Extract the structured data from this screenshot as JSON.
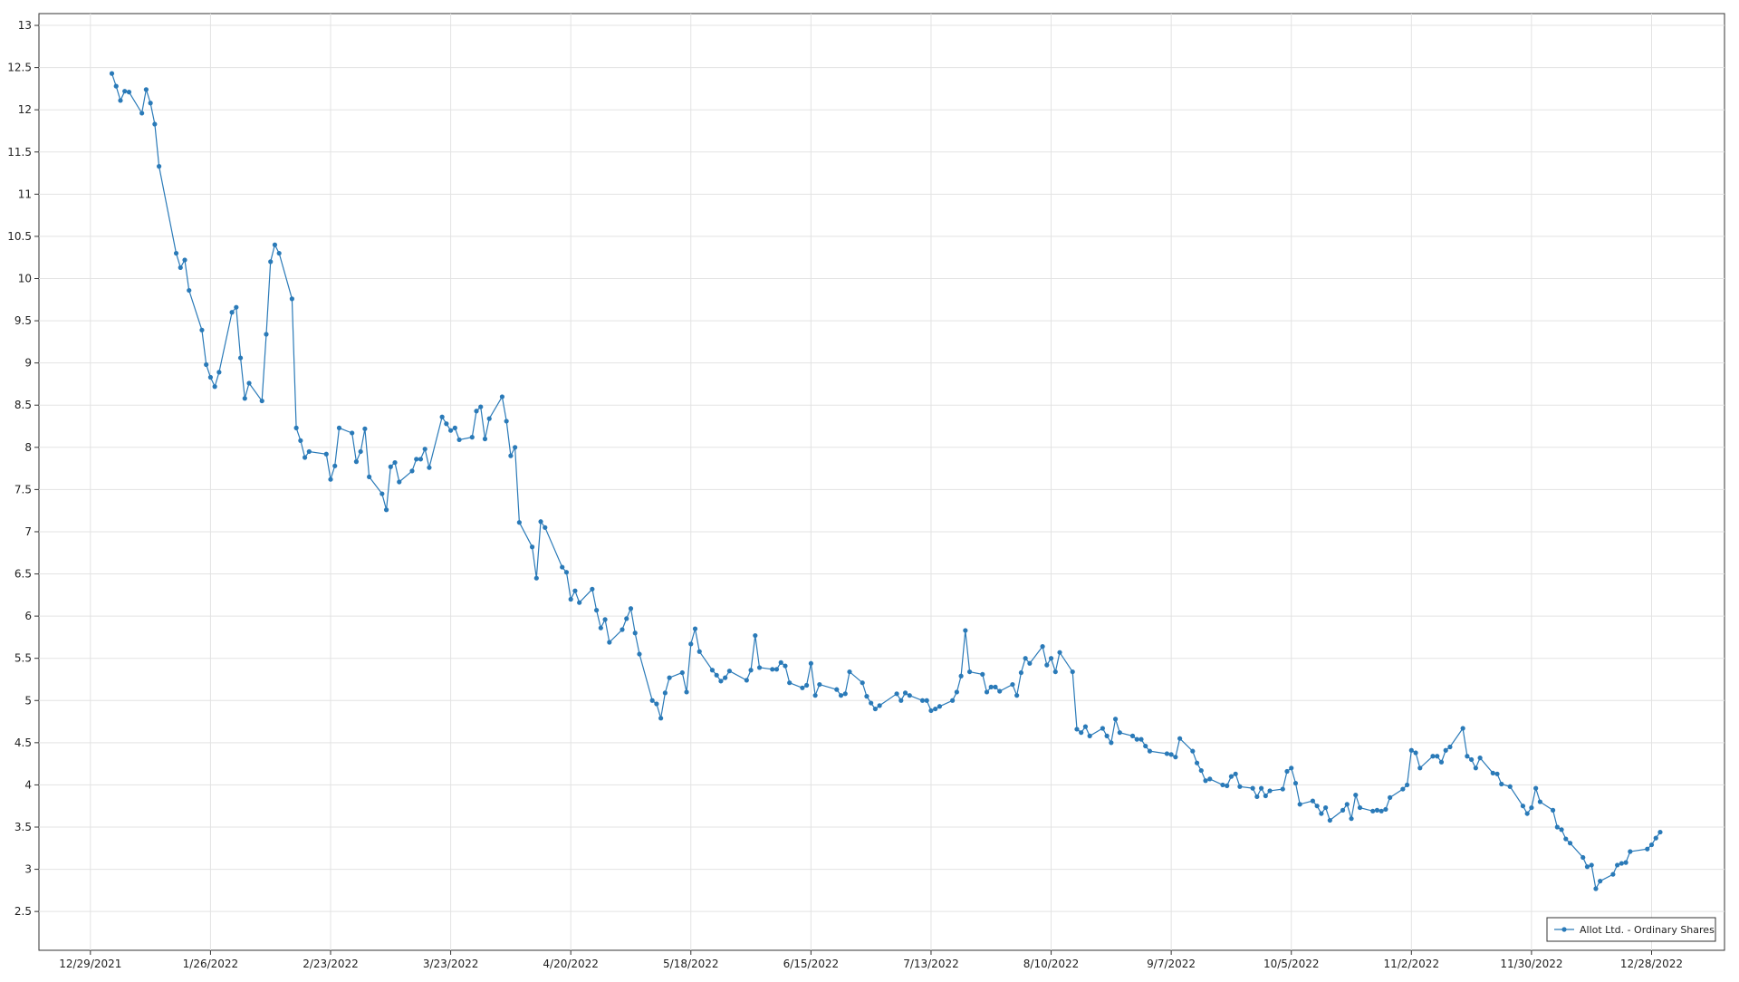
{
  "chart_data": {
    "type": "line",
    "color": "#2a7ab8",
    "grid": true,
    "legend": "lower right",
    "xlim": [
      "12/17/2021",
      "1/14/2023"
    ],
    "xticks": [
      "12/29/2021",
      "1/26/2022",
      "2/23/2022",
      "3/23/2022",
      "4/20/2022",
      "5/18/2022",
      "6/15/2022",
      "7/13/2022",
      "8/10/2022",
      "9/7/2022",
      "10/5/2022",
      "11/2/2022",
      "11/30/2022",
      "12/28/2022"
    ],
    "ylim": [
      2.04,
      13.14
    ],
    "yticks": [
      2.5,
      3,
      3.5,
      4,
      4.5,
      5,
      5.5,
      6,
      6.5,
      7,
      7.5,
      8,
      8.5,
      9,
      9.5,
      10,
      10.5,
      11,
      11.5,
      12,
      12.5,
      13
    ],
    "x": [
      "1/3/2022",
      "1/4/2022",
      "1/5/2022",
      "1/6/2022",
      "1/7/2022",
      "1/10/2022",
      "1/11/2022",
      "1/12/2022",
      "1/13/2022",
      "1/14/2022",
      "1/18/2022",
      "1/19/2022",
      "1/20/2022",
      "1/21/2022",
      "1/24/2022",
      "1/25/2022",
      "1/26/2022",
      "1/27/2022",
      "1/28/2022",
      "1/31/2022",
      "2/1/2022",
      "2/2/2022",
      "2/3/2022",
      "2/4/2022",
      "2/7/2022",
      "2/8/2022",
      "2/9/2022",
      "2/10/2022",
      "2/11/2022",
      "2/14/2022",
      "2/15/2022",
      "2/16/2022",
      "2/17/2022",
      "2/18/2022",
      "2/22/2022",
      "2/23/2022",
      "2/24/2022",
      "2/25/2022",
      "2/28/2022",
      "3/1/2022",
      "3/2/2022",
      "3/3/2022",
      "3/4/2022",
      "3/7/2022",
      "3/8/2022",
      "3/9/2022",
      "3/10/2022",
      "3/11/2022",
      "3/14/2022",
      "3/15/2022",
      "3/16/2022",
      "3/17/2022",
      "3/18/2022",
      "3/21/2022",
      "3/22/2022",
      "3/23/2022",
      "3/24/2022",
      "3/25/2022",
      "3/28/2022",
      "3/29/2022",
      "3/30/2022",
      "3/31/2022",
      "4/1/2022",
      "4/4/2022",
      "4/5/2022",
      "4/6/2022",
      "4/7/2022",
      "4/8/2022",
      "4/11/2022",
      "4/12/2022",
      "4/13/2022",
      "4/14/2022",
      "4/18/2022",
      "4/19/2022",
      "4/20/2022",
      "4/21/2022",
      "4/22/2022",
      "4/25/2022",
      "4/26/2022",
      "4/27/2022",
      "4/28/2022",
      "4/29/2022",
      "5/2/2022",
      "5/3/2022",
      "5/4/2022",
      "5/5/2022",
      "5/6/2022",
      "5/9/2022",
      "5/10/2022",
      "5/11/2022",
      "5/12/2022",
      "5/13/2022",
      "5/16/2022",
      "5/17/2022",
      "5/18/2022",
      "5/19/2022",
      "5/20/2022",
      "5/23/2022",
      "5/24/2022",
      "5/25/2022",
      "5/26/2022",
      "5/27/2022",
      "5/31/2022",
      "6/1/2022",
      "6/2/2022",
      "6/3/2022",
      "6/6/2022",
      "6/7/2022",
      "6/8/2022",
      "6/9/2022",
      "6/10/2022",
      "6/13/2022",
      "6/14/2022",
      "6/15/2022",
      "6/16/2022",
      "6/17/2022",
      "6/21/2022",
      "6/22/2022",
      "6/23/2022",
      "6/24/2022",
      "6/27/2022",
      "6/28/2022",
      "6/29/2022",
      "6/30/2022",
      "7/1/2022",
      "7/5/2022",
      "7/6/2022",
      "7/7/2022",
      "7/8/2022",
      "7/11/2022",
      "7/12/2022",
      "7/13/2022",
      "7/14/2022",
      "7/15/2022",
      "7/18/2022",
      "7/19/2022",
      "7/20/2022",
      "7/21/2022",
      "7/22/2022",
      "7/25/2022",
      "7/26/2022",
      "7/27/2022",
      "7/28/2022",
      "7/29/2022",
      "8/1/2022",
      "8/2/2022",
      "8/3/2022",
      "8/4/2022",
      "8/5/2022",
      "8/8/2022",
      "8/9/2022",
      "8/10/2022",
      "8/11/2022",
      "8/12/2022",
      "8/15/2022",
      "8/16/2022",
      "8/17/2022",
      "8/18/2022",
      "8/19/2022",
      "8/22/2022",
      "8/23/2022",
      "8/24/2022",
      "8/25/2022",
      "8/26/2022",
      "8/29/2022",
      "8/30/2022",
      "8/31/2022",
      "9/1/2022",
      "9/2/2022",
      "9/6/2022",
      "9/7/2022",
      "9/8/2022",
      "9/9/2022",
      "9/12/2022",
      "9/13/2022",
      "9/14/2022",
      "9/15/2022",
      "9/16/2022",
      "9/19/2022",
      "9/20/2022",
      "9/21/2022",
      "9/22/2022",
      "9/23/2022",
      "9/26/2022",
      "9/27/2022",
      "9/28/2022",
      "9/29/2022",
      "9/30/2022",
      "10/3/2022",
      "10/4/2022",
      "10/5/2022",
      "10/6/2022",
      "10/7/2022",
      "10/10/2022",
      "10/11/2022",
      "10/12/2022",
      "10/13/2022",
      "10/14/2022",
      "10/17/2022",
      "10/18/2022",
      "10/19/2022",
      "10/20/2022",
      "10/21/2022",
      "10/24/2022",
      "10/25/2022",
      "10/26/2022",
      "10/27/2022",
      "10/28/2022",
      "10/31/2022",
      "11/1/2022",
      "11/2/2022",
      "11/3/2022",
      "11/4/2022",
      "11/7/2022",
      "11/8/2022",
      "11/9/2022",
      "11/10/2022",
      "11/11/2022",
      "11/14/2022",
      "11/15/2022",
      "11/16/2022",
      "11/17/2022",
      "11/18/2022",
      "11/21/2022",
      "11/22/2022",
      "11/23/2022",
      "11/25/2022",
      "11/28/2022",
      "11/29/2022",
      "11/30/2022",
      "12/1/2022",
      "12/2/2022",
      "12/5/2022",
      "12/6/2022",
      "12/7/2022",
      "12/8/2022",
      "12/9/2022",
      "12/12/2022",
      "12/13/2022",
      "12/14/2022",
      "12/15/2022",
      "12/16/2022",
      "12/19/2022",
      "12/20/2022",
      "12/21/2022",
      "12/22/2022",
      "12/23/2022",
      "12/27/2022",
      "12/28/2022",
      "12/29/2022",
      "12/30/2022"
    ],
    "series": [
      {
        "name": "Allot Ltd. - Ordinary Shares",
        "color": "#2a7ab8",
        "values": [
          12.43,
          12.28,
          12.11,
          12.22,
          12.21,
          11.96,
          12.24,
          12.08,
          11.83,
          11.33,
          10.3,
          10.13,
          10.22,
          9.86,
          9.39,
          8.98,
          8.83,
          8.72,
          8.89,
          9.6,
          9.66,
          9.06,
          8.58,
          8.76,
          8.55,
          9.34,
          10.2,
          10.4,
          10.3,
          9.76,
          8.23,
          8.08,
          7.88,
          7.95,
          7.92,
          7.62,
          7.78,
          8.23,
          8.17,
          7.83,
          7.95,
          8.22,
          7.65,
          7.45,
          7.26,
          7.77,
          7.82,
          7.59,
          7.72,
          7.86,
          7.86,
          7.98,
          7.76,
          8.36,
          8.28,
          8.2,
          8.23,
          8.09,
          8.12,
          8.43,
          8.48,
          8.1,
          8.34,
          8.6,
          8.31,
          7.9,
          8.0,
          7.11,
          6.82,
          6.45,
          7.12,
          7.05,
          6.58,
          6.52,
          6.2,
          6.3,
          6.16,
          6.32,
          6.07,
          5.86,
          5.96,
          5.69,
          5.84,
          5.97,
          6.09,
          5.8,
          5.55,
          5.0,
          4.96,
          4.79,
          5.09,
          5.27,
          5.33,
          5.1,
          5.67,
          5.85,
          5.58,
          5.36,
          5.3,
          5.23,
          5.27,
          5.35,
          5.24,
          5.36,
          5.77,
          5.39,
          5.37,
          5.37,
          5.45,
          5.41,
          5.21,
          5.15,
          5.18,
          5.44,
          5.06,
          5.19,
          5.13,
          5.06,
          5.08,
          5.34,
          5.21,
          5.05,
          4.97,
          4.9,
          4.94,
          5.08,
          5.0,
          5.09,
          5.06,
          5.0,
          5.0,
          4.88,
          4.9,
          4.93,
          5.0,
          5.1,
          5.29,
          5.83,
          5.34,
          5.31,
          5.1,
          5.16,
          5.16,
          5.11,
          5.19,
          5.06,
          5.33,
          5.5,
          5.44,
          5.64,
          5.42,
          5.5,
          5.34,
          5.57,
          5.34,
          4.66,
          4.62,
          4.69,
          4.58,
          4.67,
          4.58,
          4.5,
          4.78,
          4.62,
          4.58,
          4.54,
          4.54,
          4.46,
          4.4,
          4.37,
          4.36,
          4.33,
          4.55,
          4.4,
          4.26,
          4.17,
          4.05,
          4.07,
          4.0,
          3.99,
          4.1,
          4.13,
          3.98,
          3.96,
          3.86,
          3.96,
          3.87,
          3.93,
          3.95,
          4.16,
          4.2,
          4.02,
          3.77,
          3.81,
          3.75,
          3.66,
          3.73,
          3.58,
          3.7,
          3.77,
          3.6,
          3.88,
          3.73,
          3.69,
          3.7,
          3.69,
          3.71,
          3.85,
          3.95,
          4.0,
          4.41,
          4.38,
          4.2,
          4.34,
          4.34,
          4.27,
          4.41,
          4.45,
          4.67,
          4.34,
          4.3,
          4.2,
          4.32,
          4.14,
          4.13,
          4.01,
          3.98,
          3.75,
          3.66,
          3.73,
          3.96,
          3.8,
          3.7,
          3.5,
          3.47,
          3.36,
          3.31,
          3.14,
          3.03,
          3.05,
          2.77,
          2.86,
          2.94,
          3.05,
          3.07,
          3.08,
          3.21,
          3.24,
          3.29,
          3.37,
          3.44
        ]
      }
    ]
  }
}
